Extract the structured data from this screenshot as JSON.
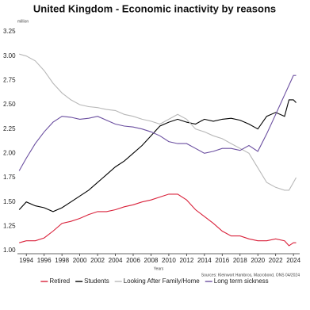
{
  "chart_data": {
    "type": "line",
    "title": "United Kingdom - Economic inactivity by reasons",
    "y_label": "million",
    "x_label": "Years",
    "source": "Sources: Kleinwort Hambros, Macrobond, ONS 04/2024",
    "x": [
      1993.2,
      1994,
      1995,
      1996,
      1997,
      1998,
      1999,
      2000,
      2001,
      2002,
      2003,
      2004,
      2005,
      2006,
      2007,
      2008,
      2009,
      2010,
      2011,
      2012,
      2013,
      2014,
      2015,
      2016,
      2017,
      2018,
      2019,
      2020,
      2021,
      2022,
      2023,
      2023.5,
      2024,
      2024.3
    ],
    "series": [
      {
        "name": "Retired",
        "color": "#d9213a",
        "values": [
          1.08,
          1.1,
          1.1,
          1.13,
          1.2,
          1.28,
          1.3,
          1.33,
          1.37,
          1.4,
          1.4,
          1.42,
          1.45,
          1.47,
          1.5,
          1.52,
          1.55,
          1.58,
          1.58,
          1.52,
          1.42,
          1.35,
          1.28,
          1.2,
          1.15,
          1.15,
          1.12,
          1.1,
          1.1,
          1.12,
          1.1,
          1.05,
          1.08,
          1.08
        ]
      },
      {
        "name": "Students",
        "color": "#000000",
        "values": [
          1.42,
          1.5,
          1.46,
          1.44,
          1.4,
          1.44,
          1.5,
          1.56,
          1.62,
          1.7,
          1.78,
          1.86,
          1.92,
          2.0,
          2.08,
          2.18,
          2.28,
          2.32,
          2.35,
          2.32,
          2.3,
          2.35,
          2.33,
          2.35,
          2.36,
          2.34,
          2.3,
          2.25,
          2.38,
          2.42,
          2.38,
          2.55,
          2.55,
          2.52
        ]
      },
      {
        "name": "Looking After Family/Home",
        "color": "#b8b8b8",
        "values": [
          3.02,
          3.0,
          2.95,
          2.85,
          2.72,
          2.62,
          2.55,
          2.5,
          2.48,
          2.47,
          2.45,
          2.44,
          2.4,
          2.38,
          2.35,
          2.33,
          2.3,
          2.35,
          2.4,
          2.35,
          2.25,
          2.22,
          2.18,
          2.15,
          2.1,
          2.05,
          2.0,
          1.85,
          1.7,
          1.65,
          1.62,
          1.62,
          1.7,
          1.75
        ]
      },
      {
        "name": "Long term sickness",
        "color": "#6b4fa0",
        "values": [
          1.82,
          1.95,
          2.1,
          2.22,
          2.32,
          2.38,
          2.37,
          2.35,
          2.36,
          2.38,
          2.34,
          2.3,
          2.28,
          2.27,
          2.25,
          2.22,
          2.18,
          2.12,
          2.1,
          2.1,
          2.05,
          2.0,
          2.02,
          2.05,
          2.05,
          2.03,
          2.08,
          2.02,
          2.2,
          2.4,
          2.6,
          2.7,
          2.8,
          2.8
        ]
      }
    ],
    "xlim": [
      1993,
      2024.7
    ],
    "xticks": [
      1994,
      1996,
      1998,
      2000,
      2002,
      2004,
      2006,
      2008,
      2010,
      2012,
      2014,
      2016,
      2018,
      2020,
      2022,
      2024
    ],
    "ylim": [
      1.0,
      3.25
    ],
    "yticks": [
      {
        "value": 1.0,
        "label": "1.00"
      },
      {
        "value": 1.25,
        "label": "1.25"
      },
      {
        "value": 1.5,
        "label": "1.50"
      },
      {
        "value": 1.75,
        "label": "1.75"
      },
      {
        "value": 2.0,
        "label": "2.00"
      },
      {
        "value": 2.25,
        "label": "2.25"
      },
      {
        "value": 2.5,
        "label": "2.50"
      },
      {
        "value": 2.75,
        "label": "2.75"
      },
      {
        "value": 3.0,
        "label": "3.00"
      },
      {
        "value": 3.25,
        "label": "3.25"
      }
    ],
    "legend": "bottom"
  }
}
